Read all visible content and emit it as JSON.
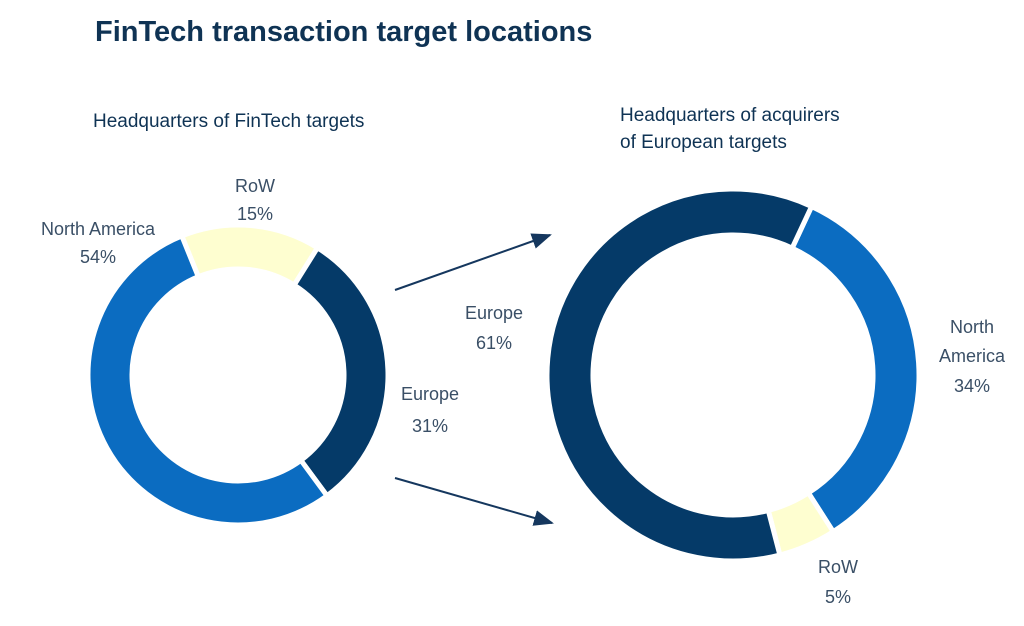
{
  "title": "FinTech transaction target locations",
  "chart_data": [
    {
      "type": "pie",
      "title": "Headquarters of FinTech targets",
      "donut": true,
      "slices": [
        {
          "label": "RoW",
          "value": 15,
          "display": "15%",
          "color": "#fefed0"
        },
        {
          "label": "Europe",
          "value": 31,
          "display": "31%",
          "color": "#053a68"
        },
        {
          "label": "North America",
          "value": 54,
          "display": "54%",
          "color": "#0b6cc1"
        }
      ]
    },
    {
      "type": "pie",
      "title": "Headquarters of acquirers of European targets",
      "title_lines": [
        "Headquarters of acquirers",
        "of European targets"
      ],
      "donut": true,
      "slices": [
        {
          "label": "North America",
          "label_lines": [
            "North",
            "America"
          ],
          "value": 34,
          "display": "34%",
          "color": "#0b6cc1"
        },
        {
          "label": "RoW",
          "value": 5,
          "display": "5%",
          "color": "#fefed0"
        },
        {
          "label": "Europe",
          "value": 61,
          "display": "61%",
          "color": "#053a68"
        }
      ]
    }
  ],
  "arrow_color": "#15375e"
}
